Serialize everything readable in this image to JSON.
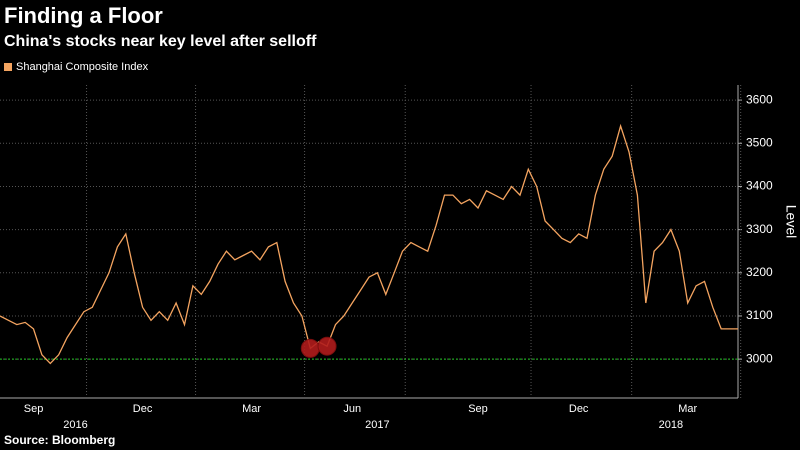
{
  "chart_data": {
    "type": "line",
    "title": "Finding a Floor",
    "subtitle": "China's stocks near key level after selloff",
    "source": "Source: Bloomberg",
    "y_label": "Level",
    "categories": [
      null,
      null,
      null,
      null,
      "Sep",
      null,
      null,
      null,
      null,
      null,
      null,
      null,
      null,
      null,
      null,
      null,
      null,
      "Dec",
      null,
      null,
      null,
      null,
      null,
      null,
      null,
      null,
      null,
      null,
      null,
      null,
      "Mar",
      null,
      null,
      null,
      null,
      null,
      null,
      null,
      null,
      null,
      null,
      null,
      "Jun",
      null,
      null,
      null,
      null,
      null,
      null,
      null,
      null,
      null,
      null,
      null,
      null,
      null,
      null,
      "Sep",
      null,
      null,
      null,
      null,
      null,
      null,
      null,
      null,
      null,
      null,
      null,
      "Dec",
      null,
      null,
      null,
      null,
      null,
      null,
      null,
      null,
      null,
      null,
      null,
      null,
      "Mar",
      null,
      null,
      null,
      null,
      null,
      null
    ],
    "year_categories": [
      null,
      null,
      null,
      null,
      null,
      null,
      null,
      null,
      null,
      "2016",
      null,
      null,
      null,
      null,
      null,
      null,
      null,
      null,
      null,
      null,
      null,
      null,
      null,
      null,
      null,
      null,
      null,
      null,
      null,
      null,
      null,
      null,
      null,
      null,
      null,
      null,
      null,
      null,
      null,
      null,
      null,
      null,
      null,
      null,
      null,
      "2017",
      null,
      null,
      null,
      null,
      null,
      null,
      null,
      null,
      null,
      null,
      null,
      null,
      null,
      null,
      null,
      null,
      null,
      null,
      null,
      null,
      null,
      null,
      null,
      null,
      null,
      null,
      null,
      null,
      null,
      null,
      null,
      null,
      null,
      null,
      "2018",
      null,
      null,
      null,
      null,
      null,
      null,
      null,
      null
    ],
    "series": [
      {
        "name": "Shanghai Composite Index",
        "color": "#f4a460",
        "values": [
          3100,
          3090,
          3080,
          3085,
          3070,
          3010,
          2990,
          3010,
          3050,
          3080,
          3110,
          3120,
          3160,
          3200,
          3260,
          3290,
          3200,
          3120,
          3090,
          3110,
          3090,
          3130,
          3080,
          3170,
          3150,
          3180,
          3220,
          3250,
          3230,
          3240,
          3250,
          3230,
          3260,
          3270,
          3180,
          3130,
          3100,
          3025,
          3040,
          3030,
          3080,
          3100,
          3130,
          3160,
          3190,
          3200,
          3150,
          3200,
          3250,
          3270,
          3260,
          3250,
          3310,
          3380,
          3380,
          3360,
          3370,
          3350,
          3390,
          3380,
          3370,
          3400,
          3380,
          3440,
          3400,
          3320,
          3300,
          3280,
          3270,
          3290,
          3280,
          3380,
          3440,
          3470,
          3540,
          3480,
          3380,
          3130,
          3250,
          3270,
          3300,
          3250,
          3130,
          3170,
          3180,
          3120,
          3070,
          3070,
          3070
        ]
      }
    ],
    "highlight_indices": [
      37,
      39
    ],
    "highlight_color": "#b01c1c",
    "reference_line": 3000,
    "reference_color": "#22c222",
    "ylim": [
      2910,
      3635
    ],
    "yticks": [
      3000,
      3100,
      3200,
      3300,
      3400,
      3500,
      3600
    ],
    "grid": true
  }
}
